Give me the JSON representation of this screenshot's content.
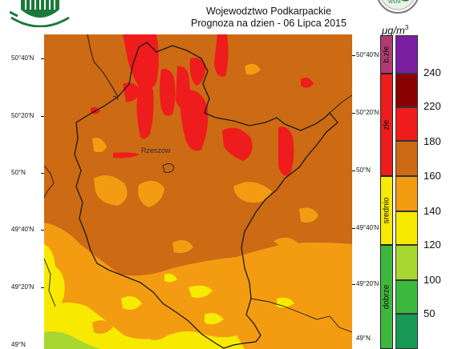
{
  "header": {
    "title": "Wojewodztwo Podkarpackie",
    "subtitle": "Prognoza na dzien -  06 Lipca 2015",
    "logo_right_text": "WSNI"
  },
  "map": {
    "city_label": "Rzeszow",
    "lat_labels_left": [
      "50°40'N",
      "50°20'N",
      "50°N",
      "49°40'N",
      "49°20'N",
      "49°N"
    ],
    "lat_labels_right": [
      "50°40'N",
      "50°20'N",
      "50°N",
      "49°40'N",
      "49°20'N",
      "49°N"
    ]
  },
  "legend": {
    "unit": "μg",
    "unit_suffix": "/m",
    "unit_exp": "3",
    "categories": [
      "b.złe",
      "złe",
      "srednio",
      "dobrze"
    ],
    "values": [
      "240",
      "220",
      "180",
      "160",
      "140",
      "120",
      "100",
      "50"
    ],
    "colors": {
      "purple": "#7b1fa2",
      "dark_red": "#8b0000",
      "red": "#ee1c1c",
      "brown_orange": "#cd6a14",
      "orange": "#f39c12",
      "yellow": "#f7ea00",
      "light_green": "#a8d830",
      "green": "#3cb83c",
      "dark_green": "#179a55"
    }
  }
}
